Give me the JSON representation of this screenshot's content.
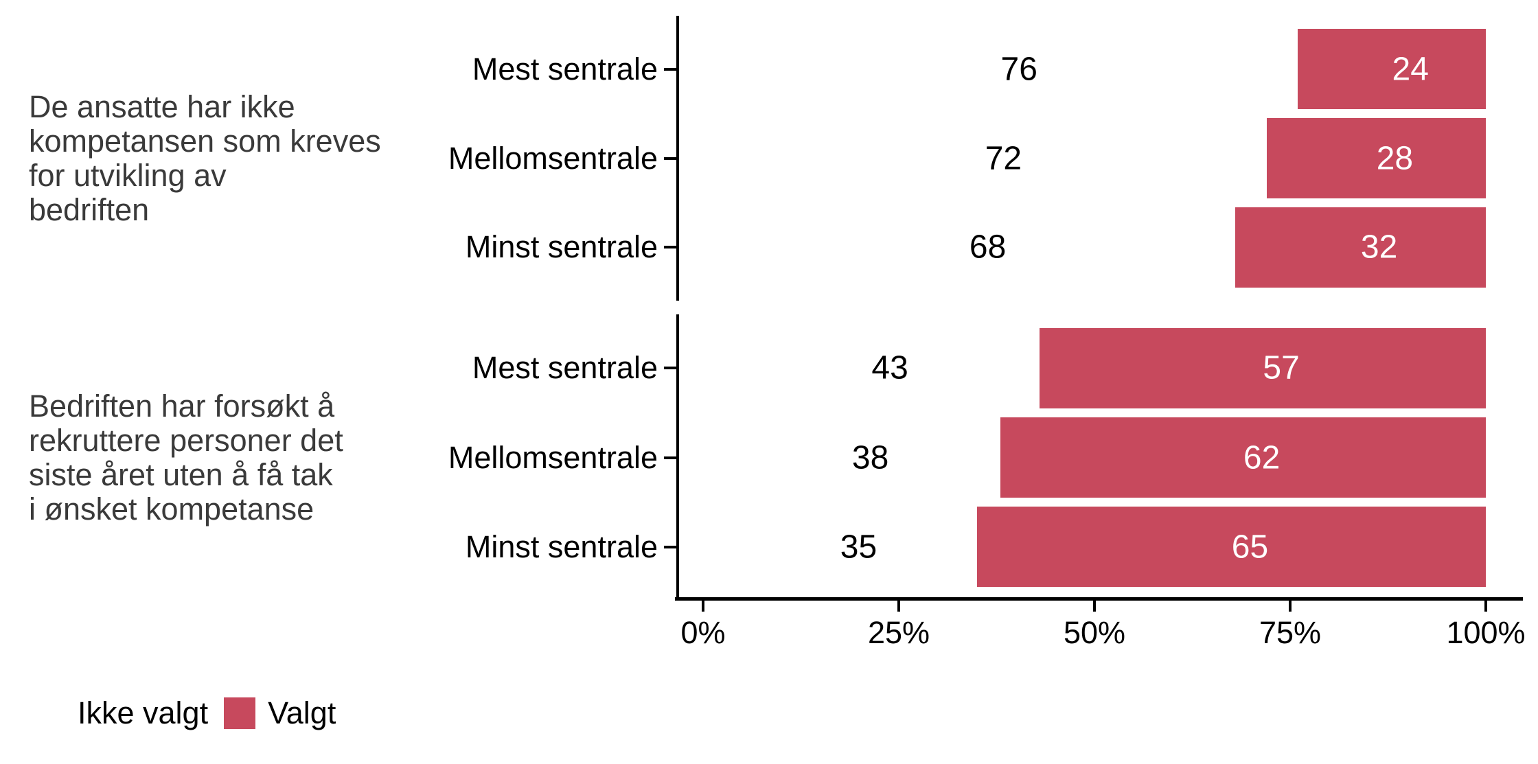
{
  "chart_data": {
    "type": "bar",
    "orientation": "horizontal",
    "stacked": true,
    "unit": "percent",
    "x_axis": {
      "range": [
        0,
        100
      ],
      "tick_values": [
        0,
        25,
        50,
        75,
        100
      ],
      "tick_labels": [
        "0%",
        "25%",
        "50%",
        "75%",
        "100%"
      ]
    },
    "facets": [
      {
        "label": "De ansatte har ikke\nkompetansen som kreves\nfor utvikling av\nbedriften",
        "categories": [
          "Mest sentrale",
          "Mellomsentrale",
          "Minst sentrale"
        ],
        "series": [
          {
            "name": "Ikke valgt",
            "values": [
              76,
              72,
              68
            ]
          },
          {
            "name": "Valgt",
            "values": [
              24,
              28,
              32
            ]
          }
        ]
      },
      {
        "label": "Bedriften har forsøkt å\nrekruttere personer det\nsiste året uten å få tak\ni ønsket kompetanse",
        "categories": [
          "Mest sentrale",
          "Mellomsentrale",
          "Minst sentrale"
        ],
        "series": [
          {
            "name": "Ikke valgt",
            "values": [
              43,
              38,
              35
            ]
          },
          {
            "name": "Valgt",
            "values": [
              57,
              62,
              65
            ]
          }
        ]
      }
    ],
    "legend": [
      {
        "label": "Ikke valgt",
        "color": "#FFFFFF"
      },
      {
        "label": "Valgt",
        "color": "#C7495D"
      }
    ],
    "colors": {
      "valgt": "#C7495D",
      "ikke_valgt": "#FFFFFF",
      "strip_text": "#3A3A3A",
      "axis": "#000000",
      "label_on_bar": "#FFFFFF",
      "label_on_white": "#000000"
    },
    "legend_position": "bottom-left",
    "grid": false
  }
}
